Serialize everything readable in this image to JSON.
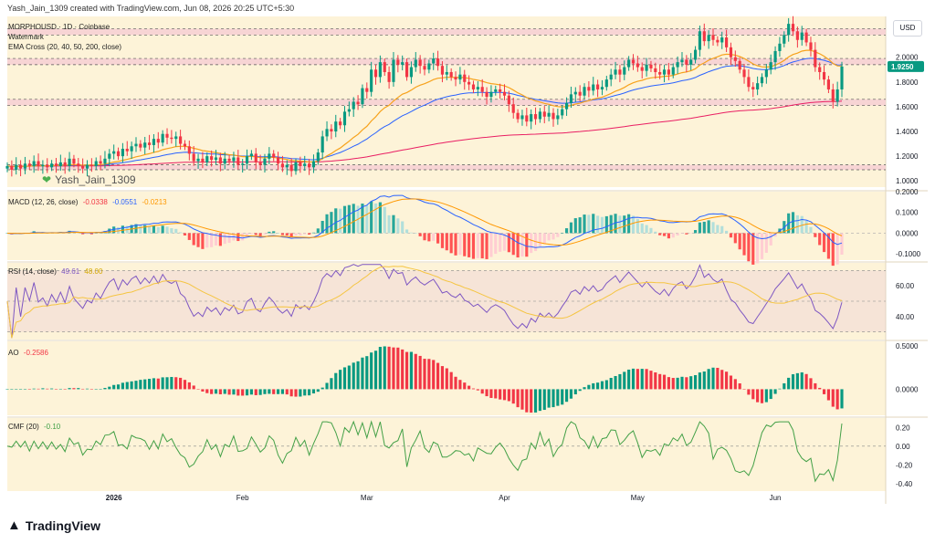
{
  "header": {
    "attribution": "Yash_Jain_1309 created with TradingView.com, Jun 08, 2026 20:25 UTC+5:30"
  },
  "legend": {
    "symbol": "MORPHOUSD · 1D · Coinbase",
    "watermark_label": "Watermark",
    "ema_label": "EMA Cross (20, 40, 50, 200, close)",
    "macd_label": "MACD (12, 26, close)",
    "macd_hist": "-0.0338",
    "macd_macd": "-0.0551",
    "macd_signal": "-0.0213",
    "rsi_label": "RSI (14, close)",
    "rsi_value": "49.61",
    "rsi_ma": "48.00",
    "ao_label": "AO",
    "ao_value": "-0.2586",
    "cmf_label": "CMF (20)",
    "cmf_value": "-0.10"
  },
  "watermark_text": "Yash_Jain_1309",
  "currency_button": "USD",
  "brand": "TradingView",
  "colors": {
    "background": "#fdf3d8",
    "up": "#089981",
    "down": "#f23645",
    "ema20": "#f7a21b",
    "ema40": "#2962ff",
    "ema200": "#e91e63",
    "macd": "#2962ff",
    "signal": "#ff9800",
    "rsi": "#7e57c2",
    "rsi_ma": "#f5c542",
    "cmf": "#43a047",
    "zone": "#f3c6d3"
  },
  "chart_data": [
    {
      "type": "candlestick",
      "name": "MORPHOUSD 1D",
      "x_ticks": [
        "2026",
        "Feb",
        "Mar",
        "Apr",
        "May",
        "Jun"
      ],
      "y_ticks": [
        1.0,
        1.2,
        1.4,
        1.6,
        1.8,
        2.0,
        2.2
      ],
      "ylim": [
        0.95,
        2.33
      ],
      "last_price": "1.9250",
      "zones": [
        [
          2.18,
          2.23
        ],
        [
          1.94,
          1.99
        ],
        [
          1.61,
          1.66
        ],
        [
          1.09,
          1.13
        ]
      ],
      "closes": [
        1.12,
        1.09,
        1.13,
        1.1,
        1.14,
        1.12,
        1.16,
        1.12,
        1.13,
        1.11,
        1.14,
        1.12,
        1.15,
        1.12,
        1.18,
        1.14,
        1.12,
        1.1,
        1.13,
        1.12,
        1.16,
        1.14,
        1.18,
        1.22,
        1.24,
        1.2,
        1.26,
        1.24,
        1.28,
        1.3,
        1.27,
        1.31,
        1.29,
        1.34,
        1.31,
        1.38,
        1.35,
        1.34,
        1.36,
        1.3,
        1.28,
        1.22,
        1.16,
        1.18,
        1.15,
        1.2,
        1.17,
        1.19,
        1.14,
        1.18,
        1.16,
        1.19,
        1.13,
        1.14,
        1.2,
        1.22,
        1.15,
        1.13,
        1.18,
        1.22,
        1.19,
        1.14,
        1.11,
        1.13,
        1.08,
        1.15,
        1.12,
        1.14,
        1.11,
        1.16,
        1.23,
        1.36,
        1.42,
        1.4,
        1.48,
        1.45,
        1.56,
        1.58,
        1.64,
        1.62,
        1.75,
        1.72,
        1.9,
        1.84,
        1.96,
        1.88,
        1.8,
        1.98,
        1.94,
        1.96,
        1.84,
        1.92,
        1.98,
        1.93,
        1.9,
        1.95,
        1.99,
        1.93,
        1.86,
        1.88,
        1.84,
        1.82,
        1.86,
        1.8,
        1.78,
        1.74,
        1.76,
        1.72,
        1.68,
        1.72,
        1.74,
        1.72,
        1.69,
        1.62,
        1.55,
        1.5,
        1.53,
        1.48,
        1.54,
        1.5,
        1.56,
        1.52,
        1.55,
        1.5,
        1.53,
        1.58,
        1.63,
        1.7,
        1.72,
        1.69,
        1.76,
        1.73,
        1.78,
        1.74,
        1.76,
        1.82,
        1.86,
        1.9,
        1.86,
        1.92,
        1.98,
        1.95,
        1.92,
        1.89,
        1.94,
        1.91,
        1.88,
        1.86,
        1.9,
        1.86,
        1.92,
        1.96,
        1.98,
        1.94,
        1.98,
        2.06,
        2.21,
        2.13,
        2.18,
        2.14,
        2.12,
        2.16,
        2.08,
        2.0,
        1.97,
        1.9,
        1.84,
        1.76,
        1.74,
        1.79,
        1.84,
        1.9,
        1.96,
        2.05,
        2.11,
        2.18,
        2.27,
        2.21,
        2.14,
        2.2,
        2.12,
        2.06,
        1.92,
        1.88,
        1.82,
        1.74,
        1.64,
        1.74,
        1.925
      ]
    },
    {
      "type": "macd",
      "y_ticks": [
        0.2,
        0.1,
        0.0,
        -0.1
      ],
      "ylim": [
        -0.13,
        0.2
      ]
    },
    {
      "type": "rsi",
      "y_ticks": [
        60.0,
        40.0
      ],
      "bands": [
        30,
        70
      ],
      "ylim": [
        25,
        75
      ]
    },
    {
      "type": "histogram",
      "name": "AO",
      "y_ticks": [
        0.5,
        0.0
      ],
      "ylim": [
        -0.3,
        0.55
      ]
    },
    {
      "type": "line",
      "name": "CMF",
      "y_ticks": [
        0.2,
        0.0,
        -0.2,
        -0.4
      ],
      "ylim": [
        -0.48,
        0.3
      ]
    }
  ]
}
